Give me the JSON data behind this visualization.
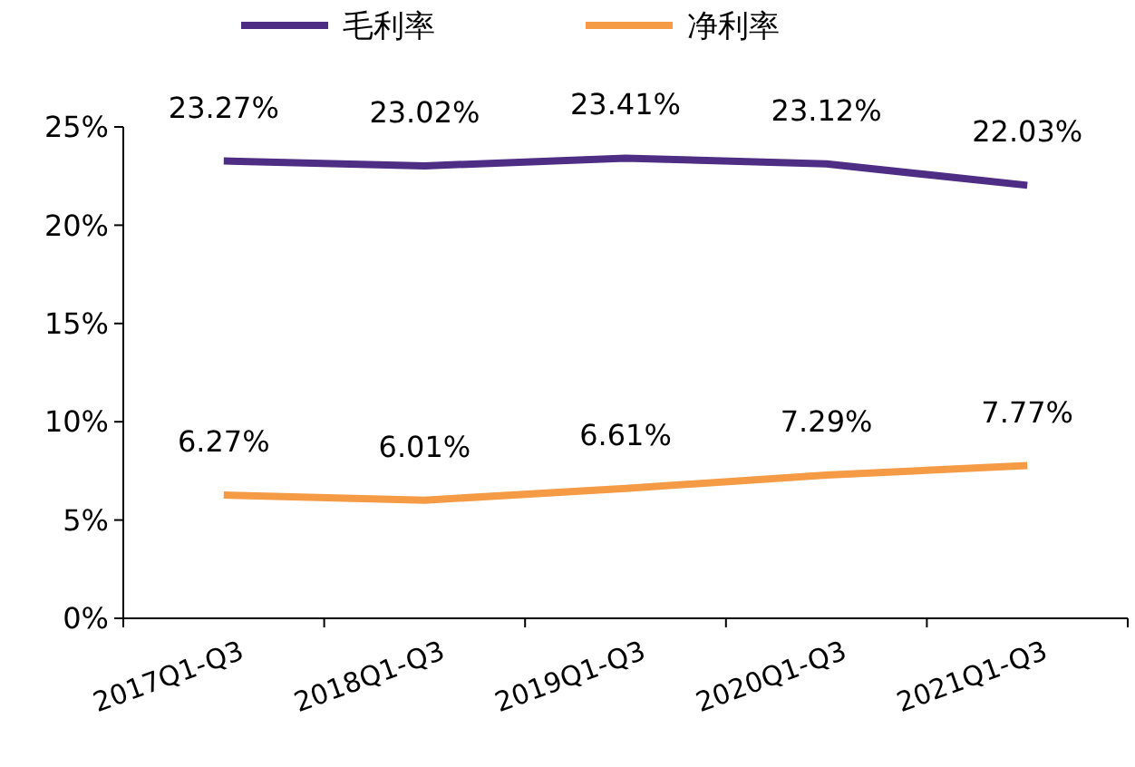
{
  "chart_data": {
    "type": "line",
    "categories": [
      "2017Q1-Q3",
      "2018Q1-Q3",
      "2019Q1-Q3",
      "2020Q1-Q3",
      "2021Q1-Q3"
    ],
    "series": [
      {
        "name": "毛利率",
        "color": "#4e2d84",
        "values": [
          23.27,
          23.02,
          23.41,
          23.12,
          22.03
        ],
        "value_labels": [
          "23.27%",
          "23.02%",
          "23.41%",
          "23.12%",
          "22.03%"
        ]
      },
      {
        "name": "净利率",
        "color": "#f59a45",
        "values": [
          6.27,
          6.01,
          6.61,
          7.29,
          7.77
        ],
        "value_labels": [
          "6.27%",
          "6.01%",
          "6.61%",
          "7.29%",
          "7.77%"
        ]
      }
    ],
    "ylim": [
      0,
      25
    ],
    "yticks": [
      {
        "value": 0,
        "label": "0%"
      },
      {
        "value": 5,
        "label": "5%"
      },
      {
        "value": 10,
        "label": "10%"
      },
      {
        "value": 15,
        "label": "15%"
      },
      {
        "value": 20,
        "label": "20%"
      },
      {
        "value": 25,
        "label": "25%"
      }
    ],
    "grid": false,
    "legend": "top",
    "marker": "none",
    "line_style": "solid"
  }
}
